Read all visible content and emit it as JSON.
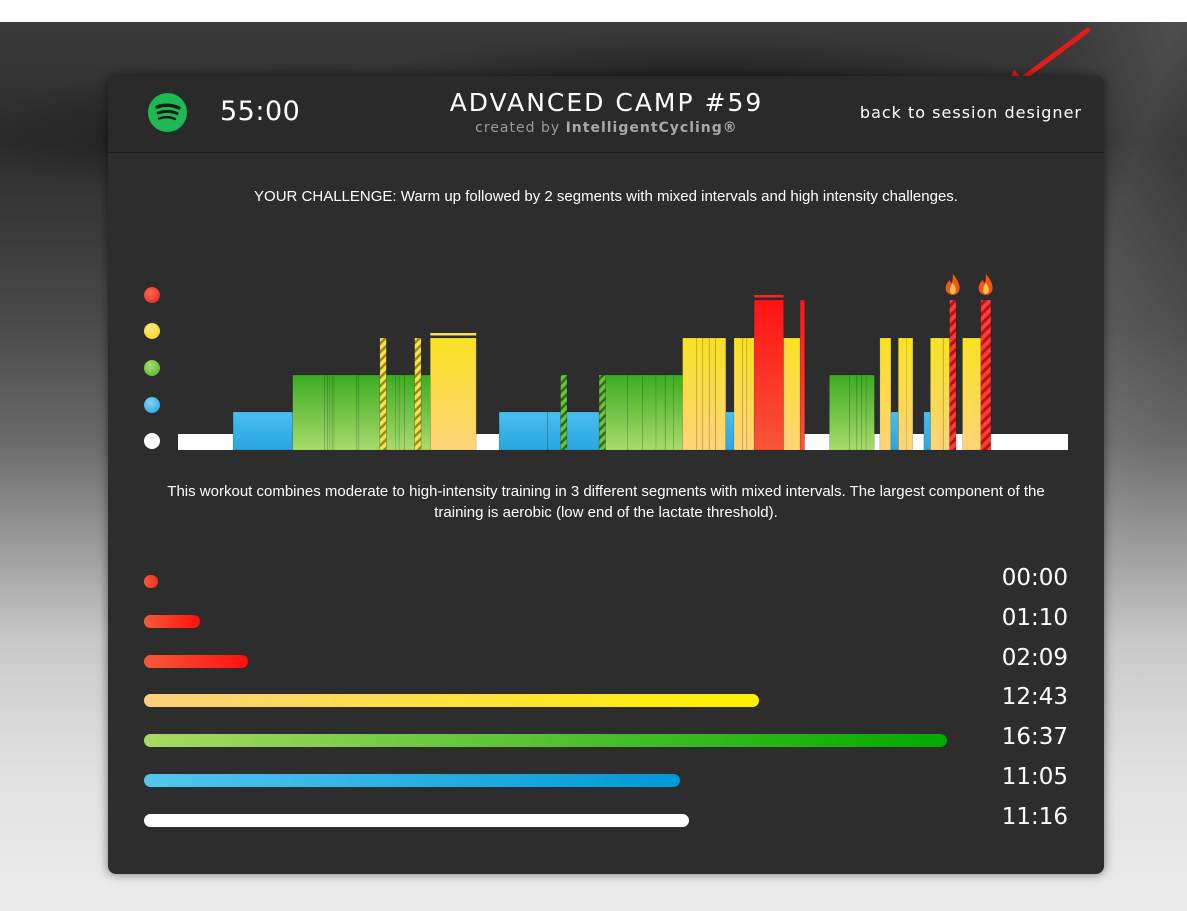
{
  "header": {
    "spotify_icon": "spotify-icon",
    "duration": "55:00",
    "title": "ADVANCED CAMP #59",
    "created_prefix": "created by",
    "created_brand": "IntelligentCycling®",
    "back_link": "back to session designer"
  },
  "challenge_text": "YOUR CHALLENGE:  Warm up followed by 2 segments with mixed intervals and high intensity challenges.",
  "description_text": "This workout combines moderate to high-intensity training in 3 different segments with mixed intervals. The largest component of the training is aerobic (low end of the lactate threshold).",
  "zone_colors": {
    "red": "#f02a2a",
    "yellow": "#f5e12c",
    "green": "#5fbf2a",
    "blue": "#29a9e1",
    "white": "#ffffff"
  },
  "chart_data": {
    "type": "bar",
    "levels": [
      "white",
      "blue",
      "green",
      "yellow",
      "red"
    ],
    "segments": [
      {
        "start": 0.0,
        "duration": 6.0,
        "level": 1
      },
      {
        "start": 6.0,
        "duration": 6.5,
        "level": 2
      },
      {
        "start": 12.5,
        "duration": 3.5,
        "level": 3
      },
      {
        "start": 16.0,
        "duration": 0.3,
        "level": 3
      },
      {
        "start": 16.3,
        "duration": 0.2,
        "level": 3
      },
      {
        "start": 16.5,
        "duration": 0.3,
        "level": 3
      },
      {
        "start": 16.8,
        "duration": 0.2,
        "level": 3
      },
      {
        "start": 17.0,
        "duration": 2.5,
        "level": 3
      },
      {
        "start": 19.5,
        "duration": 0.2,
        "level": 3
      },
      {
        "start": 19.7,
        "duration": 2.3,
        "level": 3
      },
      {
        "start": 22.0,
        "duration": 0.7,
        "level": 4,
        "striped": true
      },
      {
        "start": 22.7,
        "duration": 1.0,
        "level": 3
      },
      {
        "start": 23.7,
        "duration": 0.4,
        "level": 3
      },
      {
        "start": 24.1,
        "duration": 0.6,
        "level": 3
      },
      {
        "start": 24.7,
        "duration": 1.1,
        "level": 3
      },
      {
        "start": 25.8,
        "duration": 0.7,
        "level": 4,
        "striped": true
      },
      {
        "start": 26.5,
        "duration": 1.0,
        "level": 3
      },
      {
        "start": 27.5,
        "duration": 5.0,
        "level": 4
      },
      {
        "start": 32.5,
        "duration": 2.5,
        "level": 1
      },
      {
        "start": 35.0,
        "duration": 5.3,
        "level": 2
      },
      {
        "start": 40.3,
        "duration": 1.4,
        "level": 2
      },
      {
        "start": 41.7,
        "duration": 0.7,
        "level": 3,
        "striped": true
      },
      {
        "start": 42.4,
        "duration": 3.5,
        "level": 2
      },
      {
        "start": 45.9,
        "duration": 0.7,
        "level": 3,
        "striped": true
      },
      {
        "start": 46.6,
        "duration": 2.4,
        "level": 3
      },
      {
        "start": 49.0,
        "duration": 1.6,
        "level": 3
      },
      {
        "start": 50.6,
        "duration": 1.5,
        "level": 3
      },
      {
        "start": 52.1,
        "duration": 1.0,
        "level": 3
      },
      {
        "start": 53.1,
        "duration": 0.9,
        "level": 3
      },
      {
        "start": 54.0,
        "duration": 1.0,
        "level": 3
      },
      {
        "start": 55.0,
        "duration": 1.5,
        "level": 4
      },
      {
        "start": 56.5,
        "duration": 0.7,
        "level": 4
      },
      {
        "start": 57.2,
        "duration": 0.7,
        "level": 4
      },
      {
        "start": 57.9,
        "duration": 0.7,
        "level": 4
      },
      {
        "start": 58.6,
        "duration": 1.1,
        "level": 4
      },
      {
        "start": 59.7,
        "duration": 0.9,
        "level": 2
      },
      {
        "start": 60.6,
        "duration": 0.9,
        "level": 4
      },
      {
        "start": 61.5,
        "duration": 0.5,
        "level": 4
      },
      {
        "start": 62.0,
        "duration": 0.8,
        "level": 4
      },
      {
        "start": 62.8,
        "duration": 3.2,
        "level": 5
      },
      {
        "start": 66.0,
        "duration": 1.8,
        "level": 4
      },
      {
        "start": 67.8,
        "duration": 0.5,
        "level": 5
      },
      {
        "start": 68.3,
        "duration": 2.7,
        "level": 1
      },
      {
        "start": 71.0,
        "duration": 2.2,
        "level": 3
      },
      {
        "start": 73.2,
        "duration": 0.8,
        "level": 3
      },
      {
        "start": 74.0,
        "duration": 0.5,
        "level": 3
      },
      {
        "start": 74.5,
        "duration": 0.5,
        "level": 3
      },
      {
        "start": 75.0,
        "duration": 0.9,
        "level": 3
      },
      {
        "start": 75.9,
        "duration": 0.6,
        "level": 1
      },
      {
        "start": 76.5,
        "duration": 1.2,
        "level": 4
      },
      {
        "start": 77.7,
        "duration": 0.8,
        "level": 2
      },
      {
        "start": 78.5,
        "duration": 0.9,
        "level": 4
      },
      {
        "start": 79.4,
        "duration": 0.7,
        "level": 4
      },
      {
        "start": 80.1,
        "duration": 1.2,
        "level": 1
      },
      {
        "start": 81.3,
        "duration": 0.7,
        "level": 2
      },
      {
        "start": 82.0,
        "duration": 1.4,
        "level": 4
      },
      {
        "start": 83.4,
        "duration": 0.7,
        "level": 4
      },
      {
        "start": 84.1,
        "duration": 0.7,
        "level": 5,
        "striped": true,
        "flame": true
      },
      {
        "start": 84.8,
        "duration": 0.7,
        "level": 1
      },
      {
        "start": 85.5,
        "duration": 2.0,
        "level": 4
      },
      {
        "start": 87.5,
        "duration": 1.1,
        "level": 5,
        "striped": true,
        "flame": true
      },
      {
        "start": 88.6,
        "duration": 8.4,
        "level": 1
      }
    ],
    "x_total": 97
  },
  "zone_summary": [
    {
      "zone": "red-max",
      "time": "00:00",
      "fraction": 0.009
    },
    {
      "zone": "red-high",
      "time": "01:10",
      "fraction": 0.06
    },
    {
      "zone": "red",
      "time": "02:09",
      "fraction": 0.11
    },
    {
      "zone": "yellow",
      "time": "12:43",
      "fraction": 0.667
    },
    {
      "zone": "green",
      "time": "16:37",
      "fraction": 0.87
    },
    {
      "zone": "blue",
      "time": "11:05",
      "fraction": 0.58
    },
    {
      "zone": "white",
      "time": "11:16",
      "fraction": 0.59
    }
  ]
}
